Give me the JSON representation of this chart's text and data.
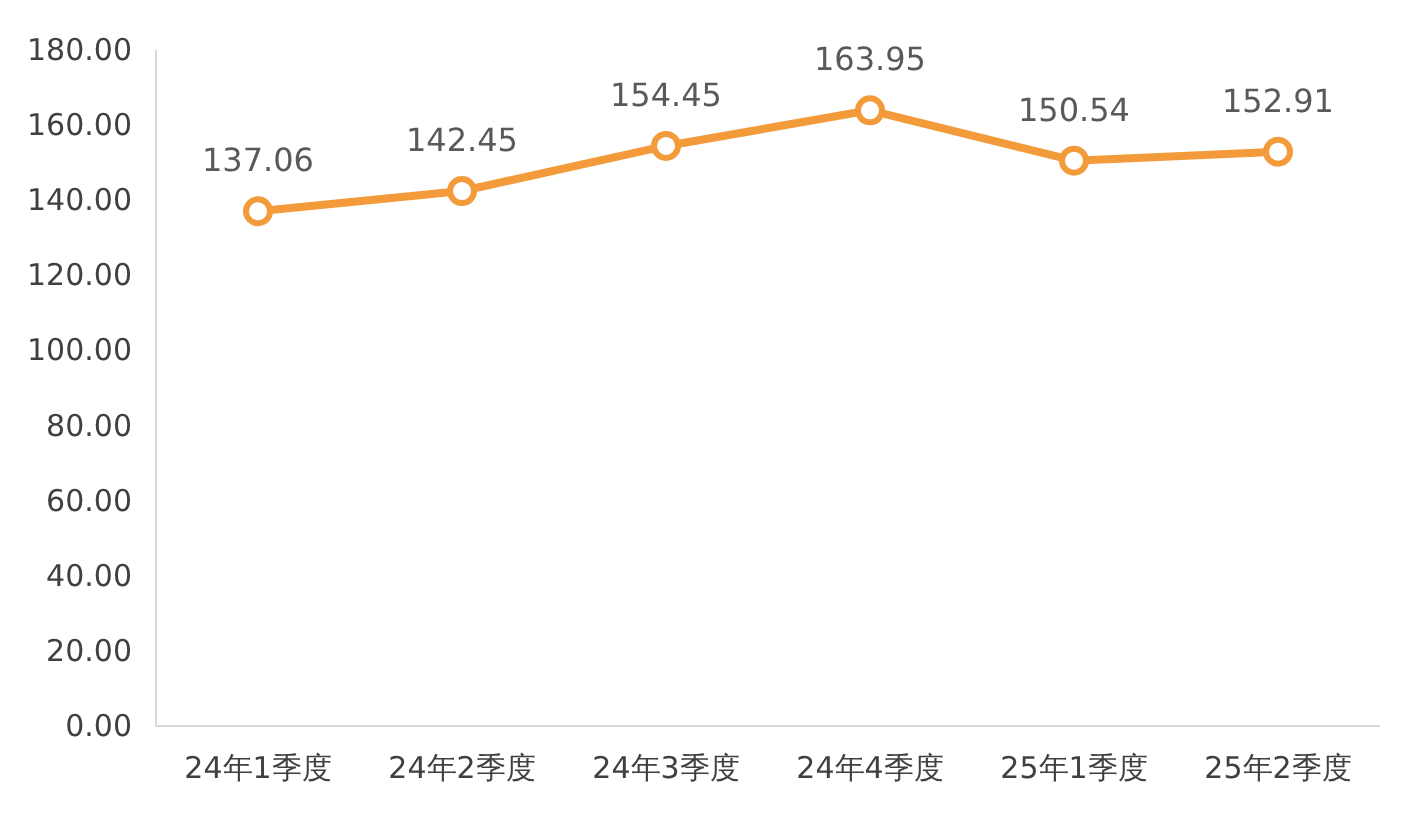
{
  "chart_data": {
    "type": "line",
    "categories": [
      "24年1季度",
      "24年2季度",
      "24年3季度",
      "24年4季度",
      "25年1季度",
      "25年2季度"
    ],
    "values": [
      137.06,
      142.45,
      154.45,
      163.95,
      150.54,
      152.91
    ],
    "color": "#f39a3a",
    "ylim": [
      0,
      180
    ],
    "yticks": [
      {
        "value": 0,
        "label": "0.00"
      },
      {
        "value": 20,
        "label": "20.00"
      },
      {
        "value": 40,
        "label": "40.00"
      },
      {
        "value": 60,
        "label": "60.00"
      },
      {
        "value": 80,
        "label": "80.00"
      },
      {
        "value": 100,
        "label": "100.00"
      },
      {
        "value": 120,
        "label": "120.00"
      },
      {
        "value": 140,
        "label": "140.00"
      },
      {
        "value": 160,
        "label": "160.00"
      },
      {
        "value": 180,
        "label": "180.00"
      }
    ],
    "data_labels": true,
    "marker": "circle",
    "grid": false
  }
}
